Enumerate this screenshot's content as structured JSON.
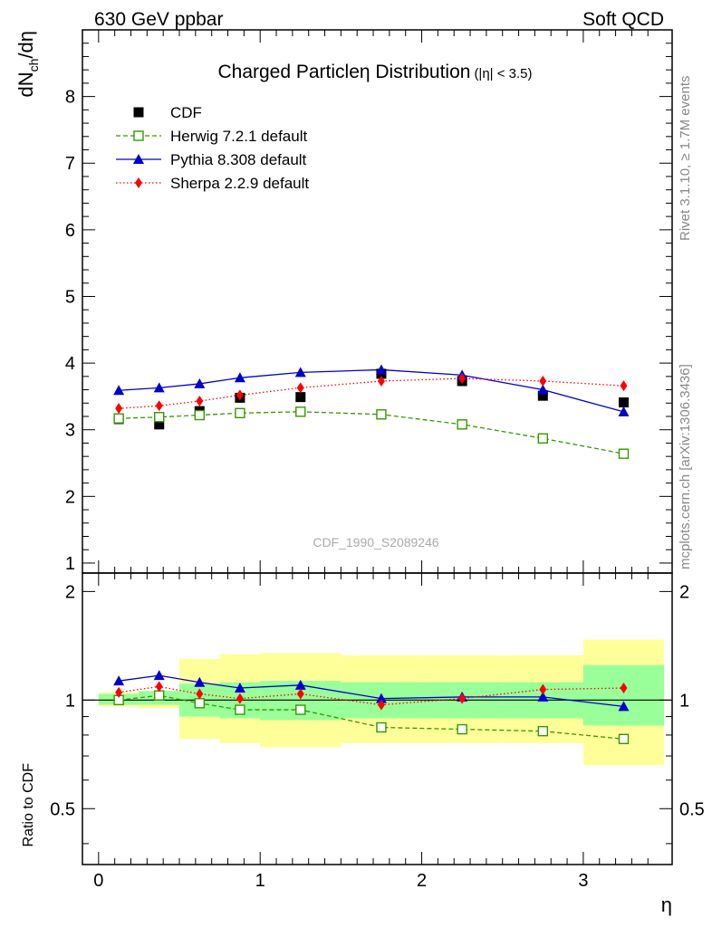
{
  "header": {
    "left": "630 GeV ppbar",
    "right": "Soft QCD"
  },
  "side_labels": {
    "rivet": "Rivet 3.1.10, ≥ 1.7M events",
    "mcplots": "mcplots.cern.ch [arXiv:1306.3436]"
  },
  "chart_data": {
    "type": "line",
    "title": "Charged Particleη Distribution",
    "title_cut": "(|η| < 3.5)",
    "watermark": "CDF_1990_S2089246",
    "xlabel": "η",
    "ylabel_main": "dN",
    "ylabel_sub": "ch",
    "ylabel_tail": "/dη",
    "ratio_ylabel": "Ratio to CDF",
    "xlim": [
      -0.1,
      3.55
    ],
    "ylim": [
      0.85,
      9.0
    ],
    "ratio_ylim": [
      0.35,
      2.25
    ],
    "x_ticks": [
      "0",
      "1",
      "2",
      "3"
    ],
    "y_ticks": [
      "1",
      "2",
      "3",
      "4",
      "5",
      "6",
      "7",
      "8"
    ],
    "ratio_y_ticks": [
      "0.5",
      "1",
      "2"
    ],
    "legend_position": "top-left",
    "data": {
      "name": "CDF",
      "color": "#000000",
      "x": [
        0.125,
        0.375,
        0.625,
        0.875,
        1.25,
        1.75,
        2.25,
        2.75,
        3.25
      ],
      "y": [
        3.16,
        3.08,
        3.28,
        3.48,
        3.49,
        3.84,
        3.73,
        3.51,
        3.41
      ]
    },
    "bins": {
      "edges": [
        0.0,
        0.25,
        0.5,
        0.75,
        1.0,
        1.5,
        2.0,
        2.5,
        3.0,
        3.5
      ],
      "band_inner": [
        [
          0.97,
          1.04
        ],
        [
          0.97,
          1.06
        ],
        [
          0.9,
          1.11
        ],
        [
          0.89,
          1.12
        ],
        [
          0.88,
          1.13
        ],
        [
          0.89,
          1.12
        ],
        [
          0.89,
          1.12
        ],
        [
          0.89,
          1.12
        ],
        [
          0.85,
          1.25
        ]
      ],
      "band_outer": [
        [
          0.96,
          1.05
        ],
        [
          0.95,
          1.06
        ],
        [
          0.78,
          1.3
        ],
        [
          0.76,
          1.34
        ],
        [
          0.74,
          1.35
        ],
        [
          0.76,
          1.33
        ],
        [
          0.76,
          1.33
        ],
        [
          0.76,
          1.33
        ],
        [
          0.66,
          1.47
        ]
      ]
    },
    "series": [
      {
        "name": "Herwig 7.2.1 default",
        "color": "#339900",
        "marker": "open-square",
        "dash": "5,3",
        "x": [
          0.125,
          0.375,
          0.625,
          0.875,
          1.25,
          1.75,
          2.25,
          2.75,
          3.25
        ],
        "y": [
          3.17,
          3.19,
          3.22,
          3.25,
          3.27,
          3.23,
          3.08,
          2.87,
          2.64
        ],
        "ratio": [
          1.0,
          1.03,
          0.98,
          0.94,
          0.94,
          0.84,
          0.83,
          0.82,
          0.78
        ]
      },
      {
        "name": "Pythia 8.308 default",
        "color": "#0000cc",
        "marker": "filled-triangle",
        "dash": "",
        "x": [
          0.125,
          0.375,
          0.625,
          0.875,
          1.25,
          1.75,
          2.25,
          2.75,
          3.25
        ],
        "y": [
          3.59,
          3.63,
          3.69,
          3.78,
          3.86,
          3.9,
          3.82,
          3.6,
          3.27
        ],
        "ratio": [
          1.13,
          1.17,
          1.12,
          1.08,
          1.1,
          1.01,
          1.02,
          1.02,
          0.96
        ]
      },
      {
        "name": "Sherpa 2.2.9 default",
        "color": "#ff0000",
        "marker": "filled-diamond",
        "dash": "1.5,2.5",
        "x": [
          0.125,
          0.375,
          0.625,
          0.875,
          1.25,
          1.75,
          2.25,
          2.75,
          3.25
        ],
        "y": [
          3.32,
          3.36,
          3.43,
          3.52,
          3.63,
          3.73,
          3.77,
          3.73,
          3.66
        ],
        "ratio": [
          1.05,
          1.09,
          1.04,
          1.01,
          1.04,
          0.97,
          1.01,
          1.07,
          1.08
        ]
      }
    ]
  }
}
